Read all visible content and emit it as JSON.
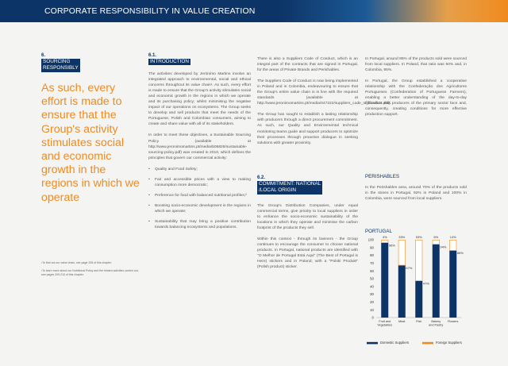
{
  "header": {
    "title": "CORPORATE RESPONSIBILITY IN VALUE CREATION"
  },
  "section6": {
    "number": "6.",
    "tag_lines": [
      "SOURCING",
      "RESPONSIBLY"
    ]
  },
  "quote": "As such, every effort is made to ensure that the Group's activity stimulates social and economic growth in the regions in which we operate",
  "footnotes": [
    "¹To find out our value chain, see page 208 of this chapter.",
    "²To learn more about our Nutritional Policy and the related activities carried out, see pages 209-213 of this chapter."
  ],
  "section61": {
    "number": "6.1.",
    "tag": "INTRODUCTION"
  },
  "col1": {
    "p1": "The activities developed by Jerónimo Martins involve an integrated approach to environmental, social and ethical concerns throughout its value chain¹. As such, every effort is made to ensure that the Group's activity stimulates social and economic growth in the regions in which we operate and its purchasing policy; whilst minimising the negative impact of our operations on ecosystems. The Group seeks to develop and sell products that meet the needs of the Portuguese, Polish and Colombian consumers, aiming to create and share value with all of its stakeholders.",
    "p2": "In order to meet these objectives, a Sustainable Sourcing Policy (available at http://www.jeronimomartins.pt/media/506826/sustainable-sourcing-policy.pdf) was created in 2010, which defines the principles that govern our commercial activity:",
    "bullets": [
      "Quality and Food Safety;",
      "Fair and accessible prices with a view to making consumption more democratic;",
      "Preference for food with balanced nutritional profiles;²",
      "Boosting socio-economic development in the regions in which we operate;",
      "Sustainability that may bring a positive contribution towards balancing ecosystems and populations."
    ]
  },
  "col2": {
    "p1": "There is also a Suppliers Code of Conduct, which is an integral part of the contracts that are signed in Portugal, for the areas of Private Brands and Perishables.",
    "p2": "The Suppliers Code of Conduct is now being implemented in Poland and in Colombia, endeavouring to ensure that the Group's entire value chain is in line with the required standards (available at http://www.jeronimomartins.pt/media/447222/suppliers_code_of_conduct.pdf).",
    "p3": "The Group has sought to establish a lasting relationship with producers through a direct procurement commitment. As such, our Quality and Environmental technical monitoring teams guide and support producers to optimize their processes through proactive dialogue in seeking solutions with greater proximity.",
    "p4": "The Group's Distribution Companies, under equal commercial terms, give priority to local suppliers in order to enhance the socio-economic sustainability of the locations in which they operate and minimise the carbon footprint of the products they sell.",
    "p5": "Within this context - through its banners - the Group continues to encourage the consumer to choose national products. In Portugal, national products are identified with \"O Melhor de Portugal Está Aqui\" (The Best of Portugal is Here) stickers and in Poland, with a \"Polski Produkt\" (Polish product) sticker."
  },
  "section62": {
    "number": "6.2.",
    "tag_lines": [
      "COMMITMENT: NATIONAL",
      "/LOCAL ORIGIN"
    ]
  },
  "col3": {
    "p1": "In Portugal, around 85% of the products sold were sourced from local suppliers. In Poland, that ratio was 94% and, in Colombia, 95%.",
    "p2": "In Portugal, the Group established a cooperative relationship with the Confederação dos Agricultores Portugueses (Confederation of Portuguese Farmers), enabling a better understanding of the day-to-day difficulties that producers of the primary sector face and, consequently, creating conditions for more effective production support.",
    "perishables_heading": "PERISHABLES",
    "p3": "In the Perishables area, around 70% of the products sold in the stores in Portugal, 92% in Poland and 100% in Colombia, were sourced from local suppliers.",
    "portugal_heading": "PORTUGAL"
  },
  "chart_data": {
    "type": "bar",
    "stacked": true,
    "categories": [
      "Fruit and Vegetables",
      "Meat",
      "Fish",
      "Bakery and Pastry",
      "Flowers"
    ],
    "category_labels": [
      [
        "Fruit and",
        "Vegetables"
      ],
      [
        "Meat"
      ],
      [
        "Fish"
      ],
      [
        "Bakery",
        "and Pastry"
      ],
      [
        "Flowers"
      ]
    ],
    "series": [
      {
        "name": "Domestic Suppliers",
        "values": [
          96,
          67,
          47,
          94,
          86
        ],
        "labels": [
          "96%",
          "67%",
          "47%",
          "94%",
          "86%"
        ],
        "color": "#0d3466"
      },
      {
        "name": "Foreign Suppliers",
        "values": [
          4,
          33,
          53,
          6,
          14
        ],
        "labels": [
          "4%",
          "33%",
          "53%",
          "6%",
          "14%"
        ],
        "color": "#f08a1e"
      }
    ],
    "ylim": [
      0,
      100
    ],
    "yticks": [
      0,
      10,
      20,
      30,
      40,
      50,
      60,
      70,
      80,
      90,
      100
    ],
    "legend_position": "bottom"
  }
}
